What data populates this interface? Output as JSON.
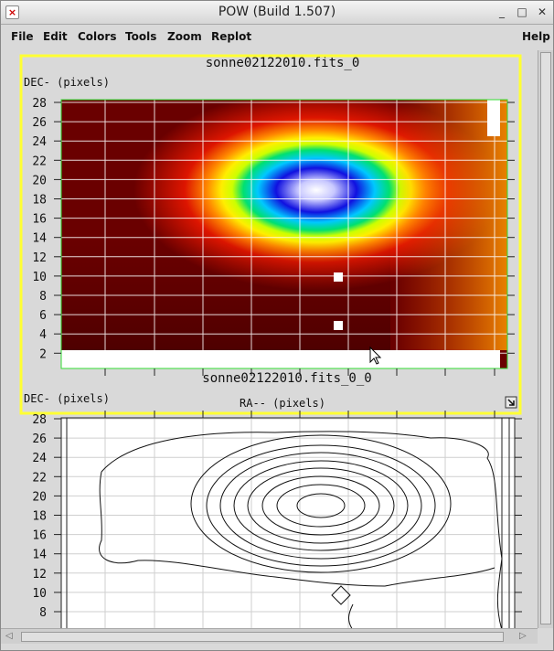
{
  "window": {
    "title": "POW (Build 1.507)",
    "min": "_",
    "max": "□",
    "close": "✕"
  },
  "menus": [
    "File",
    "Edit",
    "Colors",
    "Tools",
    "Zoom",
    "Replot",
    "Help"
  ],
  "graph1": {
    "title": "sonne02122010.fits_0",
    "ylabel": "DEC- (pixels)",
    "xlabel": "RA-- (pixels)",
    "yticks": [
      "28",
      "26",
      "24",
      "22",
      "20",
      "18",
      "16",
      "14",
      "12",
      "10",
      "8",
      "6",
      "4",
      "2"
    ]
  },
  "graph2": {
    "title": "sonne02122010.fits_0_0",
    "ylabel": "DEC- (pixels)",
    "yticks": [
      "28",
      "26",
      "24",
      "22",
      "20",
      "18",
      "16",
      "14",
      "12",
      "10",
      "8"
    ]
  },
  "colors": {
    "highlight": "#ffff33",
    "frame": "#33dd33"
  },
  "icons": {
    "resize": "resize-corner-icon",
    "cursor": "mouse-pointer-icon",
    "scroll_left": "arrow-left-icon",
    "scroll_right": "arrow-right-icon",
    "scroll_up": "arrow-up-icon",
    "scroll_down": "arrow-down-icon"
  }
}
